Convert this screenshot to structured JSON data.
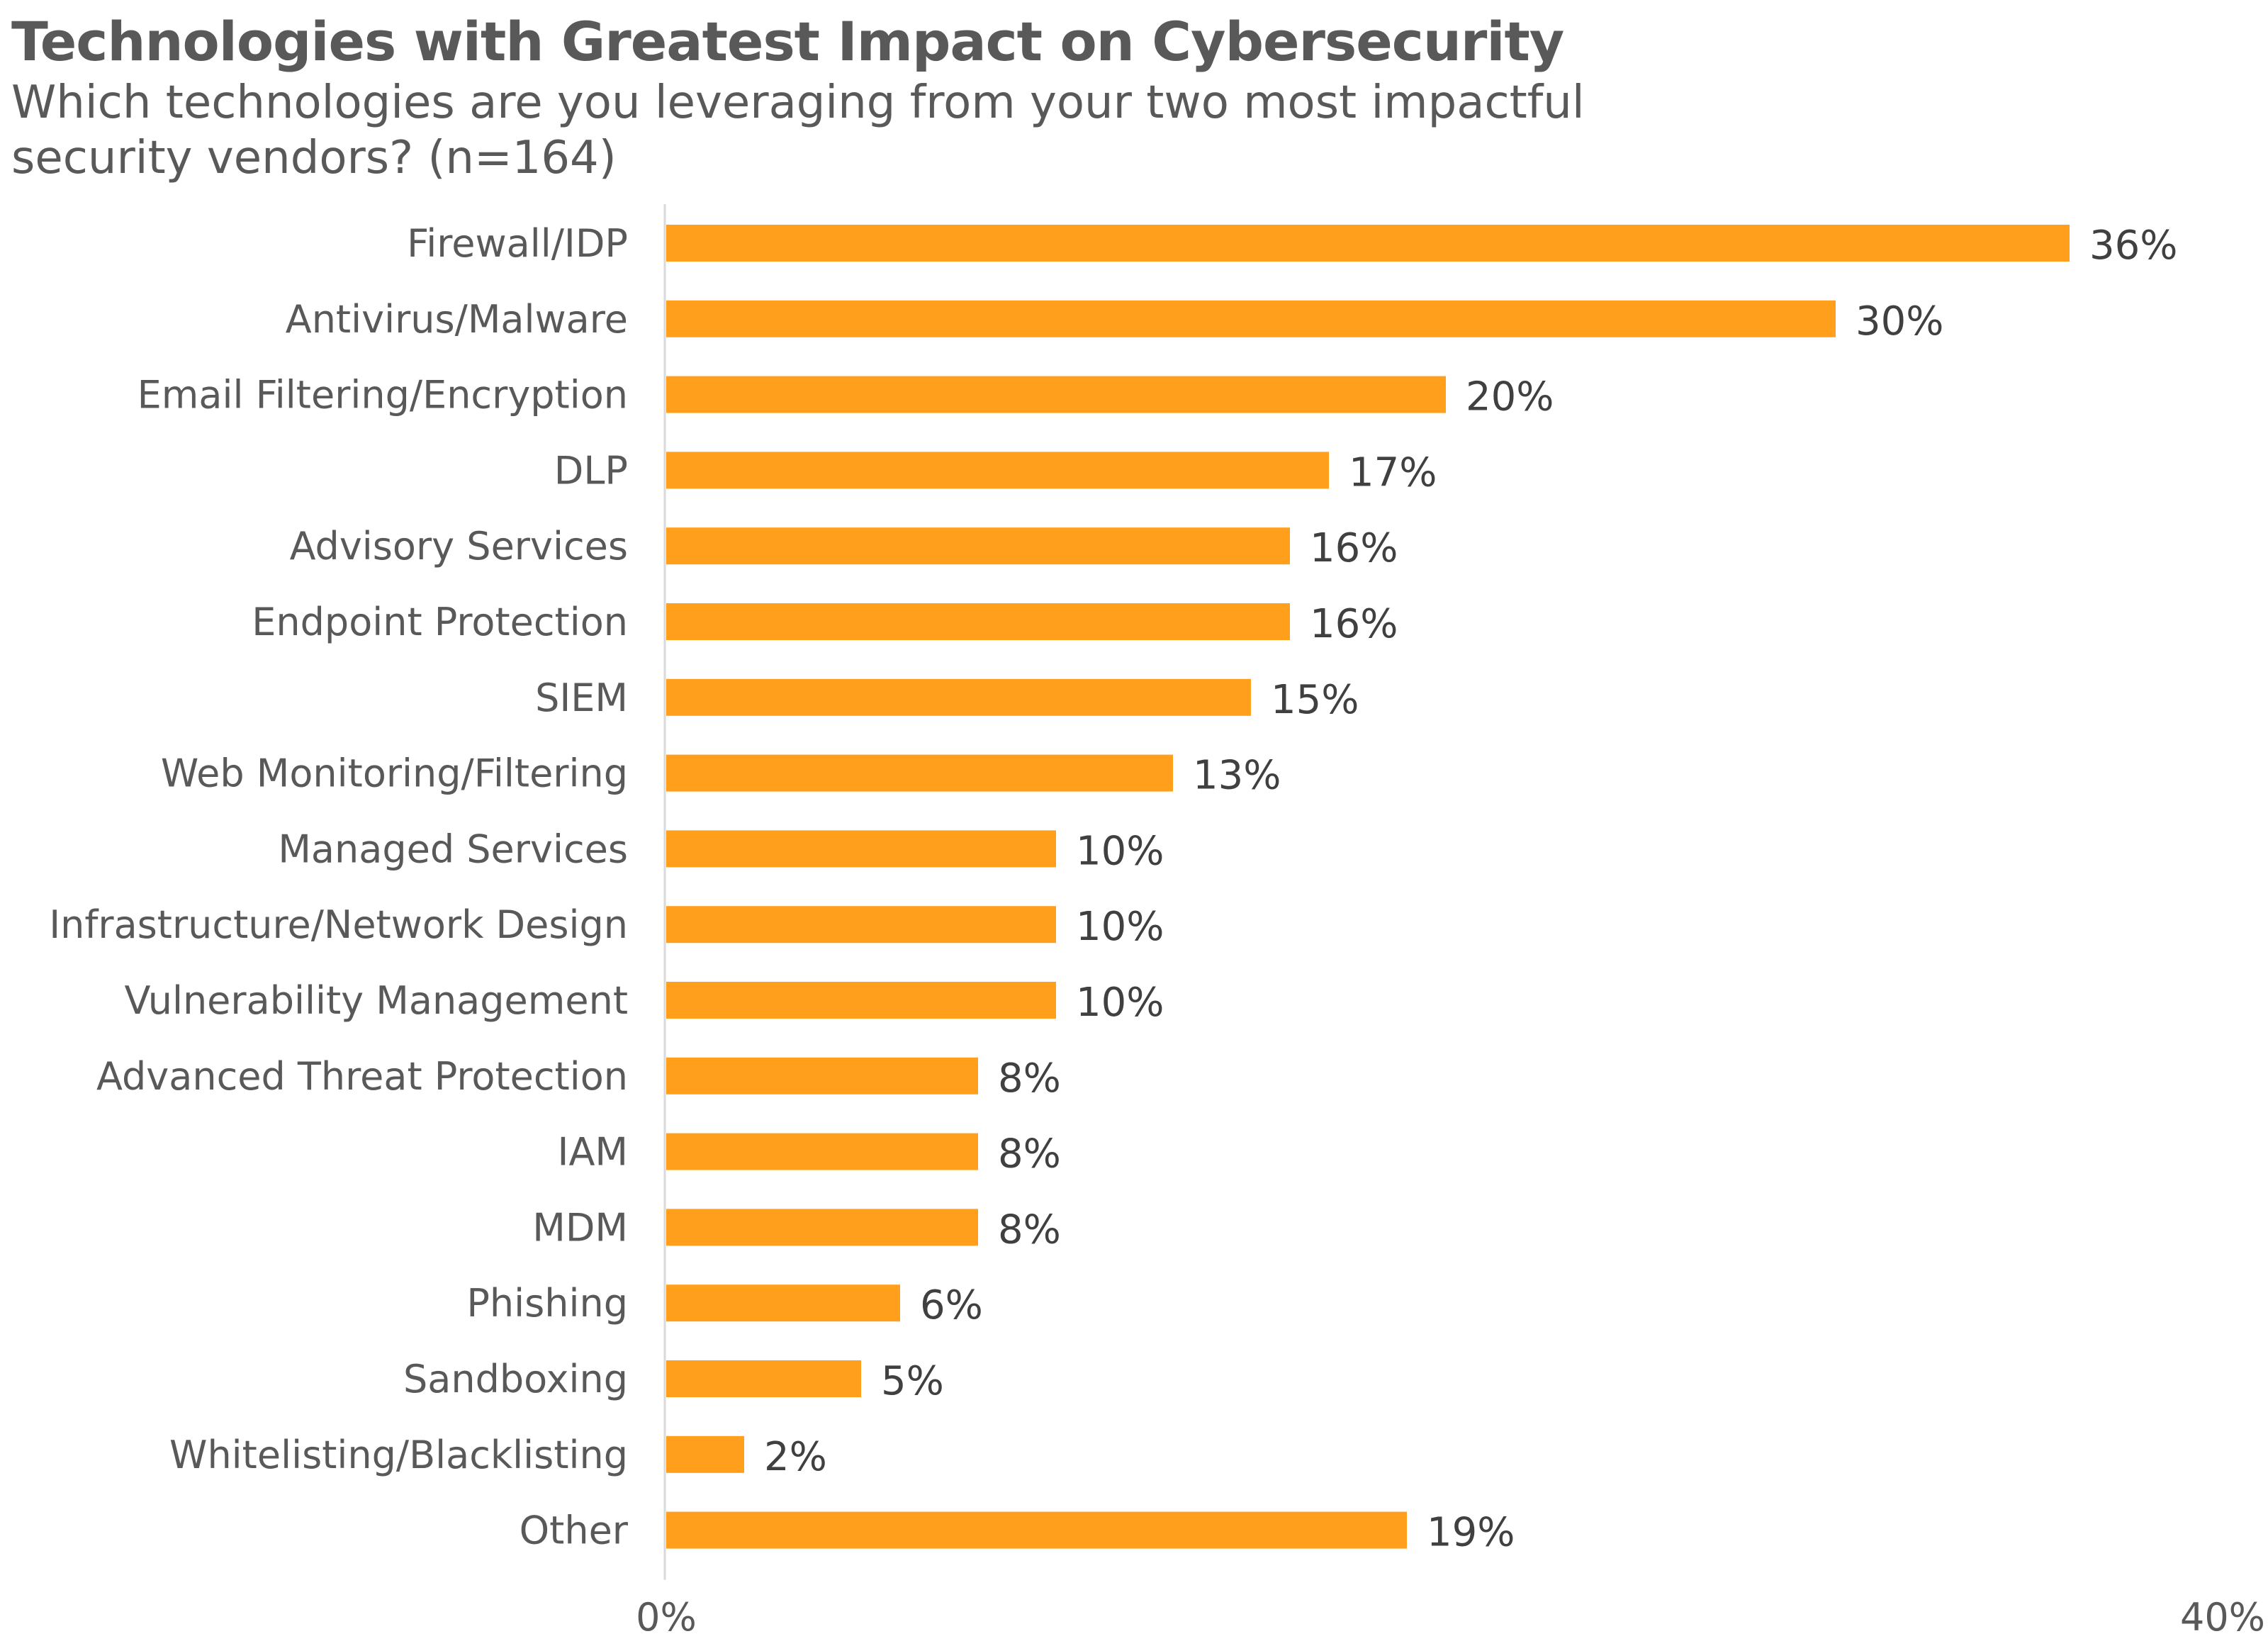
{
  "chart_data": {
    "type": "bar",
    "orientation": "horizontal",
    "title": "Technologies with Greatest Impact on Cybersecurity",
    "subtitle": "Which technologies are you leveraging from your two most impactful security vendors? (n=164)",
    "xlabel": "",
    "ylabel": "",
    "xlim": [
      0,
      40
    ],
    "x_ticks": [
      "0%",
      "40%"
    ],
    "grid": false,
    "legend": "none",
    "bar_color": "#FF9F1C",
    "categories": [
      "Firewall/IDP",
      "Antivirus/Malware",
      "Email Filtering/Encryption",
      "DLP",
      "Advisory Services",
      "Endpoint Protection",
      "SIEM",
      "Web Monitoring/Filtering",
      "Managed Services",
      "Infrastructure/Network Design",
      "Vulnerability Management",
      "Advanced Threat Protection",
      "IAM",
      "MDM",
      "Phishing",
      "Sandboxing",
      "Whitelisting/Blacklisting",
      "Other"
    ],
    "values": [
      36,
      30,
      20,
      17,
      16,
      16,
      15,
      13,
      10,
      10,
      10,
      8,
      8,
      8,
      6,
      5,
      2,
      19
    ],
    "value_labels": [
      "36%",
      "30%",
      "20%",
      "17%",
      "16%",
      "16%",
      "15%",
      "13%",
      "10%",
      "10%",
      "10%",
      "8%",
      "8%",
      "8%",
      "6%",
      "5%",
      "2%",
      "19%"
    ]
  }
}
